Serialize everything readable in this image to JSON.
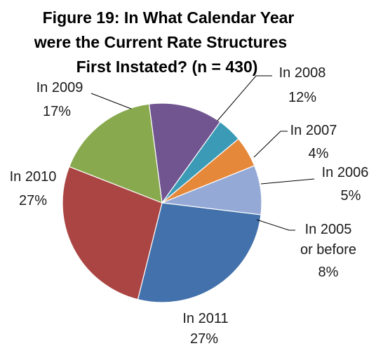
{
  "chart_data": {
    "type": "pie",
    "title_lines": [
      "Figure 19: In What Calendar Year",
      "were the Current Rate Structures",
      "First Instated? (n = 430)"
    ],
    "slices": [
      {
        "label": "In 2008",
        "value": 12,
        "display": "12%",
        "color": "#705590"
      },
      {
        "label": "In 2007",
        "value": 4,
        "display": "4%",
        "color": "#3b9ab5"
      },
      {
        "label": "In 2006",
        "value": 5,
        "display": "5%",
        "color": "#e5883a"
      },
      {
        "label": "In 2005 or before",
        "label_lines": [
          "In 2005",
          "or before"
        ],
        "value": 8,
        "display": "8%",
        "color": "#94a9d6"
      },
      {
        "label": "In 2011",
        "value": 27,
        "display": "27%",
        "color": "#4371ab"
      },
      {
        "label": "In 2010",
        "value": 27,
        "display": "27%",
        "color": "#ab4543"
      },
      {
        "label": "In 2009",
        "value": 17,
        "display": "17%",
        "color": "#88a94e"
      }
    ]
  }
}
